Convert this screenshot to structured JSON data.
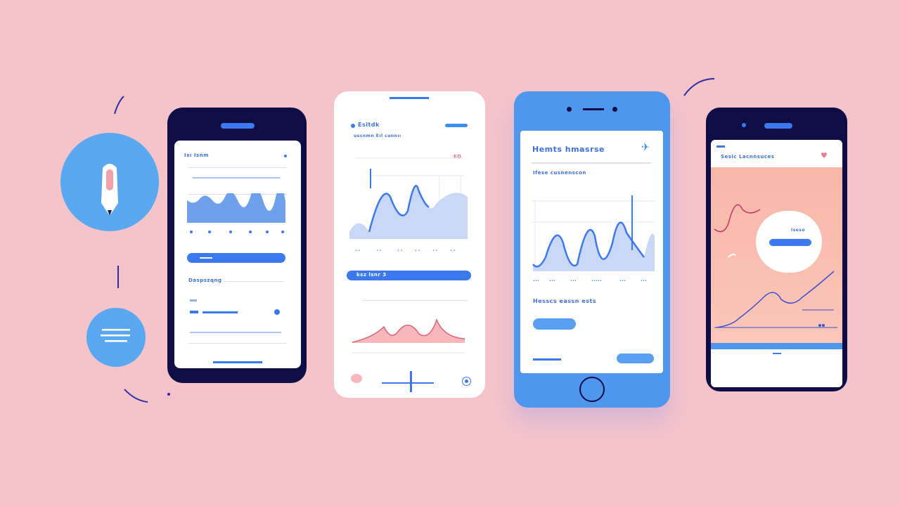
{
  "colors": {
    "background": "#f5c4cb",
    "navy": "#0e0d45",
    "blue": "#3c78ee",
    "light_blue": "#5aa8f0",
    "pink": "#f2a0aa"
  },
  "icons": {
    "left_circle": "pen-icon",
    "small_circle": "menu-lines-icon",
    "phone3_header": "plane-icon",
    "phone4_header": "heart-icon"
  },
  "phone1": {
    "title": "Ixı Isnm",
    "section": "Daspszqng"
  },
  "phone2": {
    "title": "Esitdk",
    "subtitle": "uscnmn Eıl cunnıı",
    "badge": "ED",
    "button": "ksz lsnr 3"
  },
  "phone3": {
    "title": "Hemts hmasrse",
    "subtitle": "Ifese cusnenscon",
    "section": "Hesscs eassn ests"
  },
  "phone4": {
    "title": "Sesic Lacnnsuces",
    "card_label": "Iseso"
  }
}
